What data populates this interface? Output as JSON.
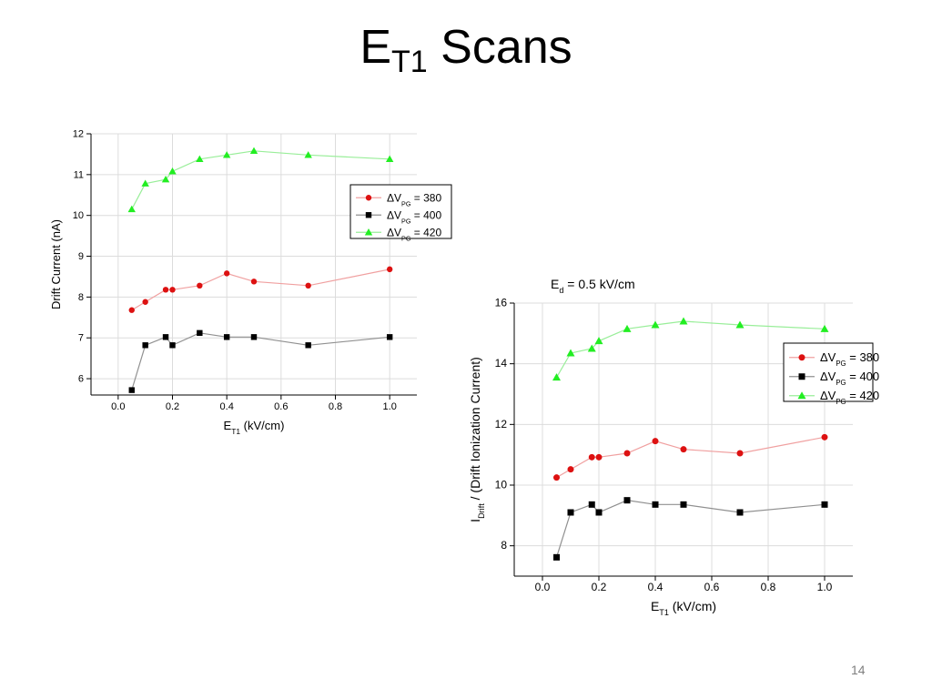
{
  "slide": {
    "title_main": "E",
    "title_sub": "T1",
    "title_rest": " Scans",
    "page_number": "14"
  },
  "chart_data": [
    {
      "type": "line",
      "title": "",
      "xlabel": "E_T1 (kV/cm)",
      "ylabel": "Drift Current (nA)",
      "xlim": [
        -0.1,
        1.1
      ],
      "ylim": [
        5.6,
        12.0
      ],
      "xticks": [
        0.0,
        0.2,
        0.4,
        0.6,
        0.8,
        1.0
      ],
      "yticks": [
        6,
        7,
        8,
        9,
        10,
        11,
        12
      ],
      "grid": true,
      "legend_position": "right",
      "x": [
        0.05,
        0.1,
        0.175,
        0.2,
        0.3,
        0.4,
        0.5,
        0.7,
        1.0
      ],
      "series": [
        {
          "name": "ΔV_PG = 380",
          "marker": "circle",
          "color": "#dd1111",
          "line_color": "#f0a0a0",
          "values": [
            7.68,
            7.88,
            8.18,
            8.18,
            8.28,
            8.58,
            8.38,
            8.28,
            8.68
          ]
        },
        {
          "name": "ΔV_PG = 400",
          "marker": "square",
          "color": "#000000",
          "line_color": "#909090",
          "values": [
            5.72,
            6.82,
            7.02,
            6.82,
            7.12,
            7.02,
            7.02,
            6.82,
            7.02
          ]
        },
        {
          "name": "ΔV_PG = 420",
          "marker": "triangle",
          "color": "#22ee22",
          "line_color": "#99ee99",
          "values": [
            10.15,
            10.78,
            10.88,
            11.08,
            11.38,
            11.48,
            11.58,
            11.48,
            11.38
          ]
        }
      ]
    },
    {
      "type": "line",
      "title": "E_d = 0.5 kV/cm",
      "xlabel": "E_T1 (kV/cm)",
      "ylabel": "I_Drift / (Drift Ionization Current)",
      "xlim": [
        -0.1,
        1.1
      ],
      "ylim": [
        7.0,
        16.0
      ],
      "xticks": [
        0.0,
        0.2,
        0.4,
        0.6,
        0.8,
        1.0
      ],
      "yticks": [
        8,
        10,
        12,
        14,
        16
      ],
      "grid": true,
      "legend_position": "right",
      "x": [
        0.05,
        0.1,
        0.175,
        0.2,
        0.3,
        0.4,
        0.5,
        0.7,
        1.0
      ],
      "series": [
        {
          "name": "ΔV_PG = 380",
          "marker": "circle",
          "color": "#dd1111",
          "line_color": "#f0a0a0",
          "values": [
            10.25,
            10.52,
            10.92,
            10.92,
            11.05,
            11.45,
            11.18,
            11.05,
            11.58
          ]
        },
        {
          "name": "ΔV_PG = 400",
          "marker": "square",
          "color": "#000000",
          "line_color": "#909090",
          "values": [
            7.62,
            9.1,
            9.36,
            9.1,
            9.5,
            9.36,
            9.36,
            9.1,
            9.36
          ]
        },
        {
          "name": "ΔV_PG = 420",
          "marker": "triangle",
          "color": "#22ee22",
          "line_color": "#99ee99",
          "values": [
            13.55,
            14.35,
            14.5,
            14.75,
            15.15,
            15.28,
            15.4,
            15.28,
            15.15
          ]
        }
      ]
    }
  ]
}
